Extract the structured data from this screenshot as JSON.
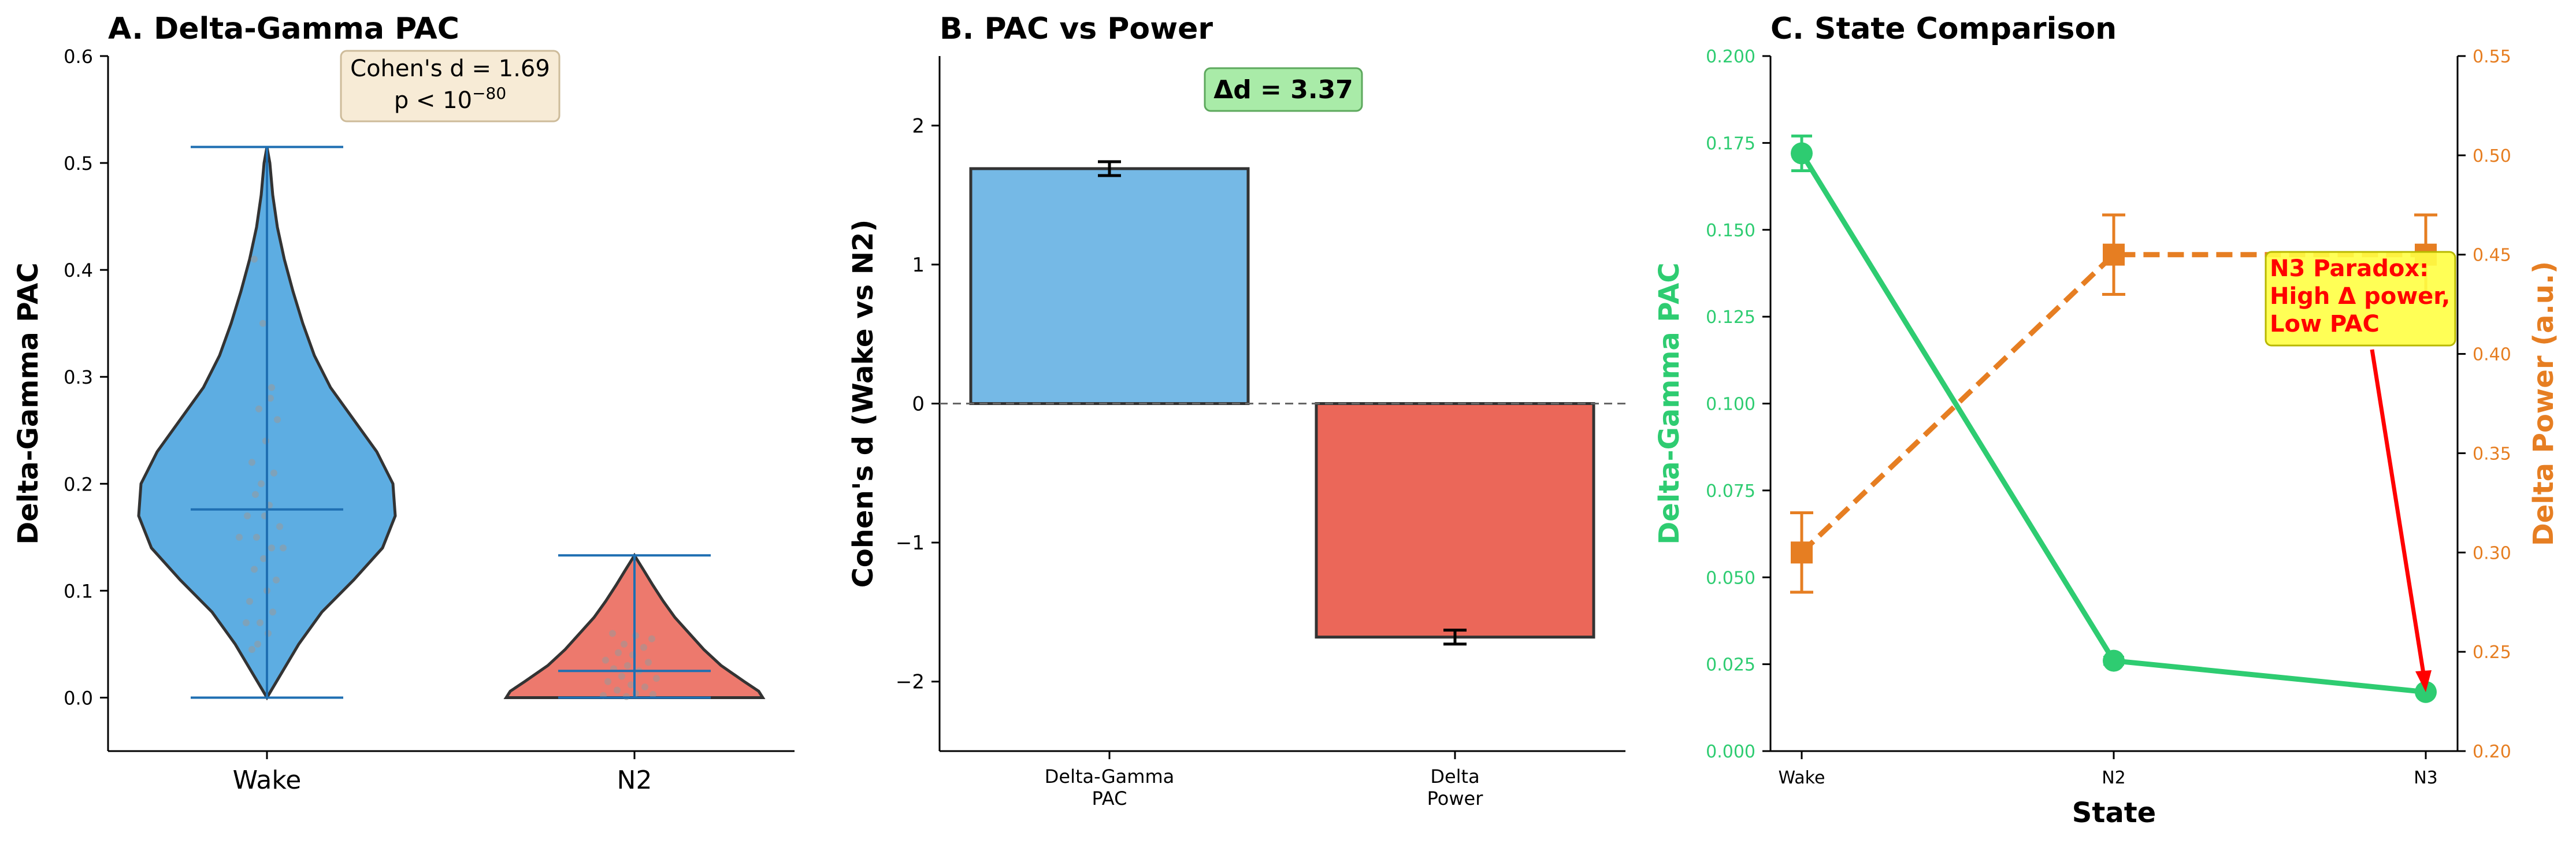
{
  "colors": {
    "wake": "#5DADE2",
    "n2": "#E74C3C",
    "pac_series": "#2ECC71",
    "power_series": "#E67E22",
    "paradox_text": "#FF0000",
    "paradox_box": "#FFFF44",
    "delta_box": "#A9EBA8",
    "stats_box": "#F7EBD6"
  },
  "chart_data": [
    {
      "type": "violin",
      "title": "A. Delta-Gamma PAC",
      "ylabel": "Delta-Gamma PAC",
      "xlabel": "",
      "categories": [
        "Wake",
        "N2"
      ],
      "ylim": [
        -0.05,
        0.6
      ],
      "yticks": [
        "0.0",
        "0.1",
        "0.2",
        "0.3",
        "0.4",
        "0.5",
        "0.6"
      ],
      "series": [
        {
          "category": "Wake",
          "min": 0.0,
          "max": 0.515,
          "median": 0.176
        },
        {
          "category": "N2",
          "min": 0.0,
          "max": 0.133,
          "median": 0.025
        }
      ],
      "annotation": {
        "line1": "Cohen's d = 1.69",
        "line2_prefix": "p < 10",
        "line2_exp": "−80"
      }
    },
    {
      "type": "bar",
      "title": "B. PAC vs Power",
      "ylabel": "Cohen's d (Wake vs N2)",
      "categories": [
        [
          "Delta-Gamma",
          "PAC"
        ],
        [
          "Delta",
          "Power"
        ]
      ],
      "values": [
        1.69,
        -1.68
      ],
      "errors": [
        0.05,
        0.05
      ],
      "ylim": [
        -2.5,
        2.5
      ],
      "yticks": [
        "−2",
        "−1",
        "0",
        "1",
        "2"
      ],
      "annotation": "Δd = 3.37"
    },
    {
      "type": "line",
      "title": "C. State Comparison",
      "xlabel": "State",
      "categories": [
        "Wake",
        "N2",
        "N3"
      ],
      "y1label": "Delta-Gamma PAC",
      "y2label": "Delta Power (a.u.)",
      "y1lim": [
        0.0,
        0.2
      ],
      "y2lim": [
        0.2,
        0.55
      ],
      "y1ticks": [
        "0.000",
        "0.025",
        "0.050",
        "0.075",
        "0.100",
        "0.125",
        "0.150",
        "0.175",
        "0.200"
      ],
      "y2ticks": [
        "0.20",
        "0.25",
        "0.30",
        "0.35",
        "0.40",
        "0.45",
        "0.50",
        "0.55"
      ],
      "series": [
        {
          "axis": "left",
          "values": [
            0.172,
            0.026,
            0.017
          ],
          "errors": [
            0.005,
            0.001,
            0.0005
          ]
        },
        {
          "axis": "right",
          "values": [
            0.3,
            0.45,
            0.45
          ],
          "errors": [
            0.02,
            0.02,
            0.02
          ]
        }
      ],
      "annotation": [
        "N3 Paradox:",
        "High Δ power,",
        "Low PAC"
      ]
    }
  ]
}
